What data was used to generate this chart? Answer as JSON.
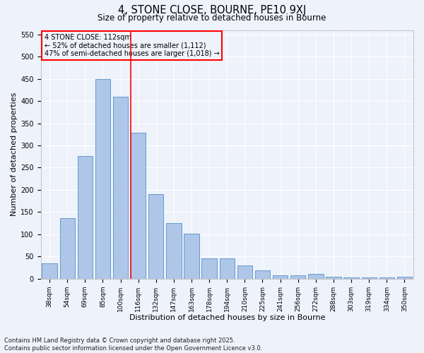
{
  "title1": "4, STONE CLOSE, BOURNE, PE10 9XJ",
  "title2": "Size of property relative to detached houses in Bourne",
  "xlabel": "Distribution of detached houses by size in Bourne",
  "ylabel": "Number of detached properties",
  "categories": [
    "38sqm",
    "54sqm",
    "69sqm",
    "85sqm",
    "100sqm",
    "116sqm",
    "132sqm",
    "147sqm",
    "163sqm",
    "178sqm",
    "194sqm",
    "210sqm",
    "225sqm",
    "241sqm",
    "256sqm",
    "272sqm",
    "288sqm",
    "303sqm",
    "319sqm",
    "334sqm",
    "350sqm"
  ],
  "values": [
    35,
    137,
    277,
    450,
    410,
    328,
    190,
    125,
    101,
    46,
    46,
    30,
    18,
    8,
    8,
    10,
    5,
    3,
    2,
    2,
    4
  ],
  "bar_color": "#aec6e8",
  "bar_edge_color": "#6699cc",
  "vline_x": 4.57,
  "vline_color": "red",
  "annotation_text": "4 STONE CLOSE: 112sqm\n← 52% of detached houses are smaller (1,112)\n47% of semi-detached houses are larger (1,018) →",
  "annotation_box_color": "red",
  "ylim": [
    0,
    560
  ],
  "yticks": [
    0,
    50,
    100,
    150,
    200,
    250,
    300,
    350,
    400,
    450,
    500,
    550
  ],
  "footer": "Contains HM Land Registry data © Crown copyright and database right 2025.\nContains public sector information licensed under the Open Government Licence v3.0.",
  "bg_color": "#eef2fb",
  "grid_color": "#ffffff"
}
